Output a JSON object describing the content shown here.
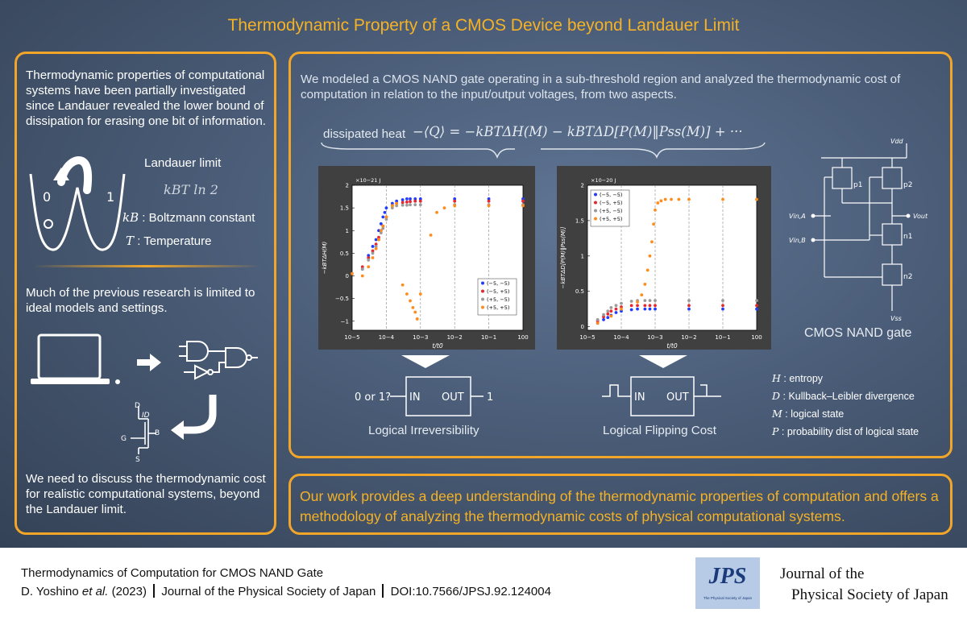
{
  "title": "Thermodynamic Property of a CMOS Device beyond Landauer Limit",
  "left": {
    "intro": "Thermodynamic properties of computational systems have been partially investigated since Landauer revealed the lower bound of dissipation for erasing one bit of information.",
    "well_label_0": "0",
    "well_label_1": "1",
    "landauer_title": "Landauer limit",
    "landauer_formula": "kBT ln 2",
    "kb_symbol": "kB",
    "kb_desc": ": Boltzmann constant",
    "t_symbol": "T",
    "t_desc": ": Temperature",
    "limited": "Much of the previous research is limited to ideal models and settings.",
    "mos_d": "D",
    "mos_g": "G",
    "mos_b": "B",
    "mos_s": "S",
    "mos_id": "ID",
    "closing": "We need to discuss the thermodynamic cost for realistic computational systems, beyond the Landauer limit."
  },
  "main": {
    "intro": "We modeled a CMOS NAND gate operating in a sub-threshold region and analyzed the thermodynamic cost of computation in relation to the input/output voltages, from two aspects.",
    "heat_label": "dissipated heat",
    "heat_formula": "−⟨Q⟩ = −kBTΔH(M) − kBTΔD[P(M)‖Pss(M)] + ···",
    "gate_left": {
      "in_text": "0 or 1?",
      "in_label": "IN",
      "out_label": "OUT",
      "out_text": "1",
      "caption": "Logical Irreversibility"
    },
    "gate_right": {
      "in_label": "IN",
      "out_label": "OUT",
      "caption": "Logical Flipping Cost"
    },
    "nand": {
      "caption": "CMOS NAND gate",
      "vdd": "Vdd",
      "vss": "Vss",
      "vin_a": "Vin,A",
      "vin_b": "Vin,B",
      "vout": "Vout",
      "p1": "p1",
      "p2": "p2",
      "n1": "n1",
      "n2": "n2"
    },
    "legend_terms": [
      {
        "sym": "H",
        "desc": ": entropy"
      },
      {
        "sym": "D",
        "desc": ": Kullback–Leibler divergence"
      },
      {
        "sym": "M",
        "desc": ": logical state"
      },
      {
        "sym": "P",
        "desc": ": probability dist of logical state"
      }
    ]
  },
  "conclusion": "Our work provides a deep understanding of the thermodynamic properties of computation and offers a methodology of analyzing the thermodynamic costs of physical computational systems.",
  "footer": {
    "line1": "Thermodynamics of Computation for CMOS NAND Gate",
    "authors": "D. Yoshino",
    "etal": "et al.",
    "year": "(2023)",
    "journal_ref": "Journal of the Physical Society of Japan",
    "doi": "DOI:10.7566/JPSJ.92.124004",
    "logo_text": "JPS",
    "logo_sub": "The Physical Society of Japan",
    "jname_1": "Journal of the",
    "jname_2": "Physical Society of Japan"
  },
  "chart_data": [
    {
      "type": "scatter",
      "xlabel": "t/t0",
      "ylabel": "−kBTΔH(M)",
      "yscale_label": "×10−21 J",
      "xscale": "log",
      "xlim": [
        1e-05,
        1
      ],
      "ylim": [
        -1.2,
        2
      ],
      "xticks": [
        "10−5",
        "10−4",
        "10−3",
        "10−2",
        "10−1",
        "100"
      ],
      "yticks": [
        "−1",
        "−0.5",
        "0",
        "0.5",
        "1",
        "1.5",
        "2"
      ],
      "legend_position": "bottom-right",
      "series": [
        {
          "name": "(−5, −5)",
          "color": "#1f3cff",
          "x": [
            2e-05,
            3e-05,
            4e-05,
            5e-05,
            6e-05,
            7e-05,
            8e-05,
            9e-05,
            0.0001,
            0.00015,
            0.0002,
            0.0003,
            0.0004,
            0.0005,
            0.0007,
            0.001,
            0.01,
            0.1,
            1
          ],
          "y": [
            0.15,
            0.45,
            0.65,
            0.8,
            1.0,
            1.15,
            1.3,
            1.4,
            1.5,
            1.6,
            1.65,
            1.68,
            1.7,
            1.7,
            1.7,
            1.7,
            1.7,
            1.7,
            1.7
          ]
        },
        {
          "name": "(−5, +5)",
          "color": "#e8262d",
          "x": [
            2e-05,
            3e-05,
            4e-05,
            5e-05,
            6e-05,
            7e-05,
            8e-05,
            0.0001,
            0.00015,
            0.0002,
            0.0003,
            0.0004,
            0.0005,
            0.0007,
            0.001,
            0.01,
            0.1,
            1
          ],
          "y": [
            0.2,
            0.4,
            0.55,
            0.7,
            0.85,
            1.0,
            1.1,
            1.3,
            1.55,
            1.6,
            1.62,
            1.63,
            1.64,
            1.65,
            1.65,
            1.65,
            1.65,
            1.65
          ]
        },
        {
          "name": "(+5, −5)",
          "color": "#9a9a9a",
          "x": [
            2e-05,
            3e-05,
            4e-05,
            5e-05,
            6e-05,
            7e-05,
            8e-05,
            0.0001,
            0.00015,
            0.0002,
            0.0003,
            0.0004,
            0.0005,
            0.0007,
            0.001,
            0.01,
            0.1,
            1
          ],
          "y": [
            0.15,
            0.35,
            0.5,
            0.65,
            0.8,
            0.95,
            1.05,
            1.25,
            1.5,
            1.55,
            1.56,
            1.56,
            1.57,
            1.57,
            1.57,
            1.57,
            1.57,
            1.57
          ]
        },
        {
          "name": "(+5, +5)",
          "color": "#ff8c1a",
          "x": [
            1e-05,
            2e-05,
            3e-05,
            4e-05,
            5e-05,
            6e-05,
            7e-05,
            8e-05,
            0.0001,
            0.00015,
            0.0002,
            0.0003,
            0.0004,
            0.0005,
            0.0006,
            0.0007,
            0.0008,
            0.001,
            0.002,
            0.003,
            0.005,
            0.01,
            0.1,
            1
          ],
          "y": [
            0.05,
            0.0,
            0.2,
            0.4,
            0.6,
            0.8,
            1.0,
            1.1,
            1.3,
            1.55,
            1.6,
            -0.2,
            -0.4,
            -0.55,
            -0.7,
            -0.8,
            -0.95,
            -0.4,
            0.9,
            1.4,
            1.5,
            1.55,
            1.55,
            1.55
          ]
        }
      ]
    },
    {
      "type": "scatter",
      "xlabel": "t/t0",
      "ylabel": "−kBTΔD[P(M)‖Pss(M)]",
      "yscale_label": "×10−20 J",
      "xscale": "log",
      "xlim": [
        1e-05,
        1
      ],
      "ylim": [
        -0.05,
        2
      ],
      "xticks": [
        "10−5",
        "10−4",
        "10−3",
        "10−2",
        "10−1",
        "100"
      ],
      "yticks": [
        "0",
        "0.5",
        "1",
        "1.5",
        "2"
      ],
      "legend_position": "top-left",
      "series": [
        {
          "name": "(−5, −5)",
          "color": "#1f3cff",
          "x": [
            2e-05,
            3e-05,
            4e-05,
            5e-05,
            7e-05,
            0.0001,
            0.0002,
            0.0003,
            0.0005,
            0.0007,
            0.001,
            0.01,
            0.1,
            1
          ],
          "y": [
            0.05,
            0.1,
            0.13,
            0.16,
            0.2,
            0.22,
            0.24,
            0.25,
            0.25,
            0.25,
            0.25,
            0.25,
            0.25,
            0.25
          ]
        },
        {
          "name": "(−5, +5)",
          "color": "#e8262d",
          "x": [
            2e-05,
            3e-05,
            4e-05,
            5e-05,
            7e-05,
            0.0001,
            0.0002,
            0.0003,
            0.0005,
            0.0007,
            0.001,
            0.01,
            0.1,
            1
          ],
          "y": [
            0.08,
            0.14,
            0.18,
            0.22,
            0.25,
            0.28,
            0.3,
            0.3,
            0.3,
            0.3,
            0.3,
            0.3,
            0.3,
            0.3
          ]
        },
        {
          "name": "(+5, −5)",
          "color": "#9a9a9a",
          "x": [
            2e-05,
            3e-05,
            4e-05,
            5e-05,
            7e-05,
            0.0001,
            0.0002,
            0.0003,
            0.0005,
            0.0007,
            0.001,
            0.01,
            0.1,
            1
          ],
          "y": [
            0.1,
            0.17,
            0.22,
            0.27,
            0.3,
            0.33,
            0.36,
            0.37,
            0.37,
            0.37,
            0.37,
            0.37,
            0.37,
            0.37
          ]
        },
        {
          "name": "(+5, +5)",
          "color": "#ff8c1a",
          "x": [
            2e-05,
            5e-05,
            0.0001,
            0.0003,
            0.0004,
            0.0005,
            0.0006,
            0.0007,
            0.0008,
            0.0009,
            0.001,
            0.0012,
            0.0015,
            0.002,
            0.003,
            0.005,
            0.01,
            0.1,
            1
          ],
          "y": [
            0.05,
            0.15,
            0.25,
            0.35,
            0.45,
            0.6,
            0.8,
            1.0,
            1.2,
            1.45,
            1.65,
            1.75,
            1.78,
            1.8,
            1.8,
            1.8,
            1.8,
            1.8,
            1.8
          ]
        }
      ]
    }
  ]
}
